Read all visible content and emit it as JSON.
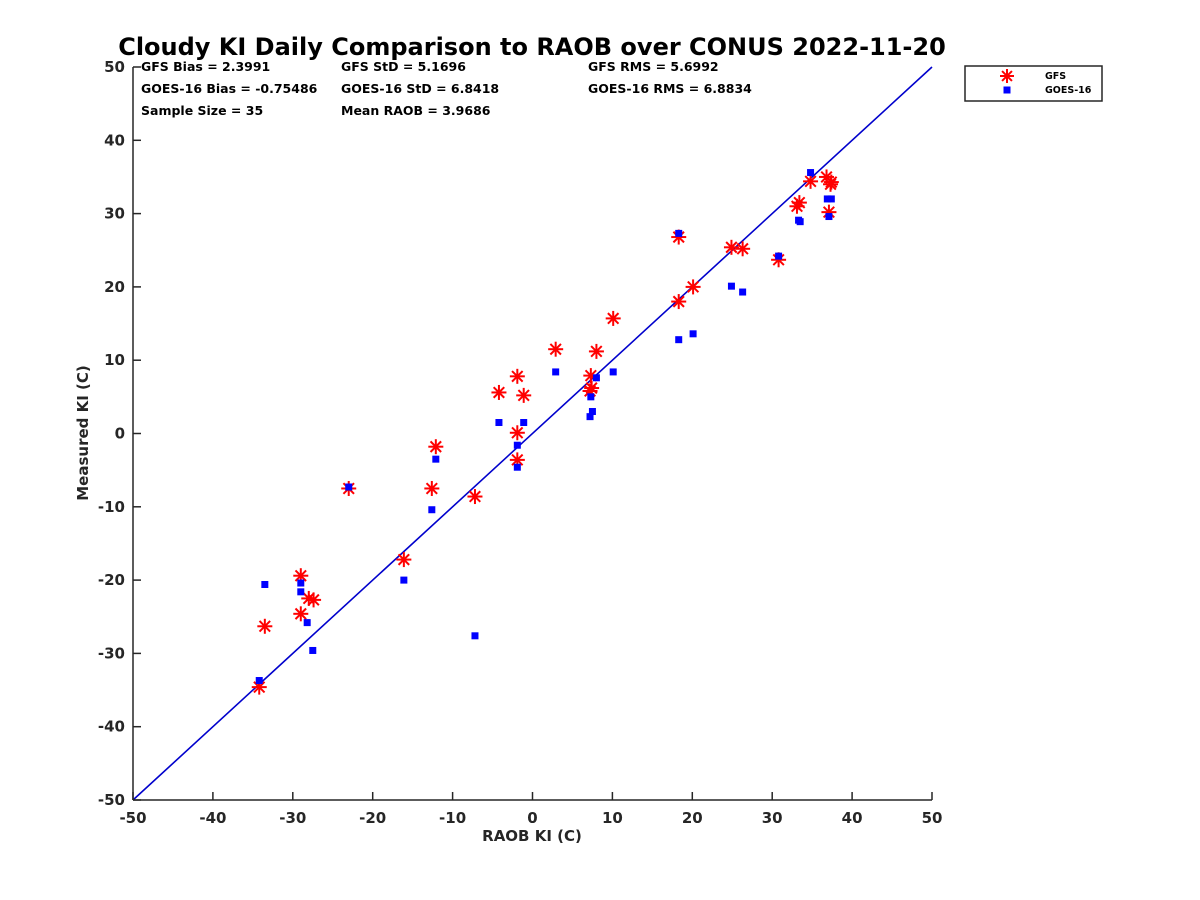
{
  "chart_data": {
    "type": "scatter",
    "title": "Cloudy KI Daily Comparison to RAOB over CONUS 2022-11-20",
    "xlabel": "RAOB KI (C)",
    "ylabel": "Measured KI (C)",
    "xlim": [
      -50,
      50
    ],
    "ylim": [
      -50,
      50
    ],
    "xticks": [
      "-50",
      "-40",
      "-30",
      "-20",
      "-10",
      "0",
      "10",
      "20",
      "30",
      "40",
      "50"
    ],
    "yticks": [
      "-50",
      "-40",
      "-30",
      "-20",
      "-10",
      "0",
      "10",
      "20",
      "30",
      "40",
      "50"
    ],
    "grid": false,
    "legend_position": "outside-top-right",
    "stats": [
      [
        "GFS Bias = 2.3991",
        "GFS StD = 5.1696",
        "GFS RMS = 5.6992"
      ],
      [
        "GOES-16 Bias = -0.75486",
        "GOES-16 StD = 6.8418",
        "GOES-16 RMS = 6.8834"
      ],
      [
        "Sample Size = 35",
        "Mean RAOB = 3.9686",
        ""
      ]
    ],
    "reference_line": {
      "type": "one-to-one",
      "color": "#0000CC"
    },
    "series": [
      {
        "name": "GFS",
        "marker": "asterisk",
        "color": "#FF0000",
        "points": [
          [
            -34.2,
            -34.6
          ],
          [
            -33.5,
            -26.3
          ],
          [
            -29.0,
            -19.4
          ],
          [
            -29.0,
            -24.6
          ],
          [
            -28.0,
            -22.5
          ],
          [
            -27.4,
            -22.7
          ],
          [
            -23.0,
            -7.5
          ],
          [
            -16.1,
            -17.2
          ],
          [
            -12.6,
            -7.5
          ],
          [
            -12.1,
            -1.8
          ],
          [
            -7.2,
            -8.6
          ],
          [
            -4.2,
            5.6
          ],
          [
            -1.9,
            7.8
          ],
          [
            -1.9,
            0.1
          ],
          [
            -1.9,
            -3.6
          ],
          [
            -1.1,
            5.2
          ],
          [
            2.9,
            11.5
          ],
          [
            7.2,
            5.8
          ],
          [
            7.3,
            7.9
          ],
          [
            7.4,
            6.2
          ],
          [
            8.0,
            11.2
          ],
          [
            10.1,
            15.7
          ],
          [
            18.3,
            26.8
          ],
          [
            18.3,
            18.0
          ],
          [
            20.1,
            20.0
          ],
          [
            24.9,
            25.4
          ],
          [
            26.3,
            25.2
          ],
          [
            30.8,
            23.7
          ],
          [
            33.1,
            31.0
          ],
          [
            33.4,
            31.5
          ],
          [
            34.8,
            34.4
          ],
          [
            36.8,
            35.0
          ],
          [
            37.1,
            30.2
          ],
          [
            37.3,
            34.0
          ],
          [
            37.4,
            34.3
          ]
        ]
      },
      {
        "name": "GOES-16",
        "marker": "square",
        "color": "#0000FF",
        "points": [
          [
            -34.2,
            -33.7
          ],
          [
            -33.5,
            -20.6
          ],
          [
            -29.0,
            -20.4
          ],
          [
            -29.0,
            -21.6
          ],
          [
            -28.2,
            -25.8
          ],
          [
            -27.5,
            -29.6
          ],
          [
            -23.0,
            -7.3
          ],
          [
            -16.1,
            -20.0
          ],
          [
            -12.6,
            -10.4
          ],
          [
            -12.1,
            -3.5
          ],
          [
            -7.2,
            -27.6
          ],
          [
            -4.2,
            1.5
          ],
          [
            -1.9,
            -1.6
          ],
          [
            -1.9,
            -4.6
          ],
          [
            -1.1,
            1.5
          ],
          [
            2.9,
            8.4
          ],
          [
            7.2,
            2.3
          ],
          [
            7.3,
            5.0
          ],
          [
            7.5,
            3.0
          ],
          [
            8.0,
            7.6
          ],
          [
            10.1,
            8.4
          ],
          [
            18.3,
            27.3
          ],
          [
            18.3,
            12.8
          ],
          [
            20.1,
            13.6
          ],
          [
            24.9,
            20.1
          ],
          [
            26.3,
            19.3
          ],
          [
            30.8,
            24.2
          ],
          [
            33.3,
            29.1
          ],
          [
            33.5,
            28.9
          ],
          [
            34.8,
            35.6
          ],
          [
            36.9,
            32.0
          ],
          [
            37.1,
            29.6
          ],
          [
            37.4,
            32.0
          ]
        ]
      }
    ]
  }
}
